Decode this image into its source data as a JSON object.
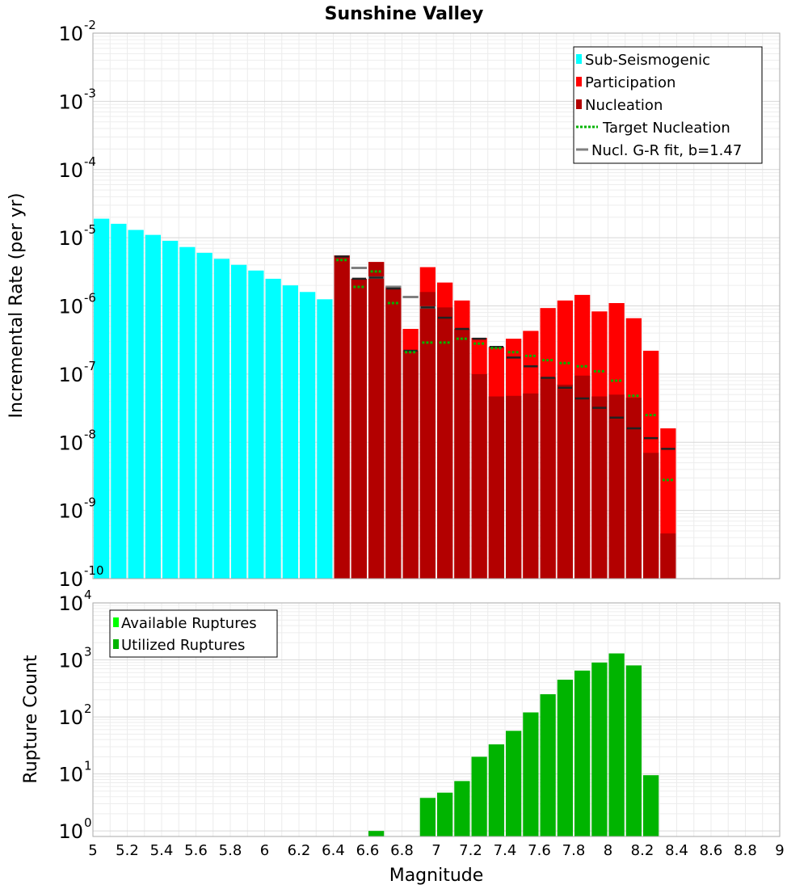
{
  "chart_data": [
    {
      "type": "bar",
      "title": "Sunshine Valley",
      "xlabel": "",
      "ylabel": "Incremental Rate (per yr)",
      "yscale": "log",
      "ylim": [
        1e-10,
        0.01
      ],
      "xlim": [
        5,
        9
      ],
      "ytick_exponents": [
        "-10",
        "-9",
        "-8",
        "-7",
        "-6",
        "-5",
        "-4",
        "-3",
        "-2"
      ],
      "ytick_base": "10",
      "legend_position": "top-right",
      "colors": {
        "sub_seismogenic": "#00ffff",
        "participation": "#ff0000",
        "nucleation": "#b30000",
        "target_nucleation": "#00b400",
        "gr_fit": "#808080",
        "nucleation_marker": "#222222"
      },
      "legend": [
        {
          "label": "Sub-Seismogenic",
          "kind": "bar",
          "color": "#00ffff"
        },
        {
          "label": "Participation",
          "kind": "bar",
          "color": "#ff0000"
        },
        {
          "label": "Nucleation",
          "kind": "bar",
          "color": "#b30000"
        },
        {
          "label": "Target Nucleation",
          "kind": "dotted",
          "color": "#00b400"
        },
        {
          "label": "Nucl. G-R fit, b=1.47",
          "kind": "line",
          "color": "#808080"
        }
      ],
      "series": [
        {
          "name": "Sub-Seismogenic",
          "x": [
            5.05,
            5.15,
            5.25,
            5.35,
            5.45,
            5.55,
            5.65,
            5.75,
            5.85,
            5.95,
            6.05,
            6.15,
            6.25,
            6.35
          ],
          "values": [
            1.9e-05,
            1.6e-05,
            1.3e-05,
            1.1e-05,
            9e-06,
            7.3e-06,
            6e-06,
            4.9e-06,
            4e-06,
            3.3e-06,
            2.5e-06,
            2e-06,
            1.6e-06,
            1.25e-06
          ]
        },
        {
          "name": "Participation",
          "x": [
            6.45,
            6.55,
            6.65,
            6.75,
            6.85,
            6.95,
            7.05,
            7.15,
            7.25,
            7.35,
            7.45,
            7.55,
            7.65,
            7.75,
            7.85,
            7.95,
            8.05,
            8.15,
            8.25,
            8.35
          ],
          "values": [
            5.5e-06,
            2.5e-06,
            4.4e-06,
            1.9e-06,
            4.6e-07,
            3.7e-06,
            2.2e-06,
            1.2e-06,
            3.4e-07,
            2.5e-07,
            3.3e-07,
            4.3e-07,
            9.3e-07,
            1.2e-06,
            1.45e-06,
            8.3e-07,
            1.1e-06,
            6.6e-07,
            2.2e-07,
            1.6e-08
          ]
        },
        {
          "name": "Nucleation",
          "x": [
            6.45,
            6.55,
            6.65,
            6.75,
            6.85,
            6.95,
            7.05,
            7.15,
            7.25,
            7.35,
            7.45,
            7.55,
            7.65,
            7.75,
            7.85,
            7.95,
            8.05,
            8.15,
            8.25,
            8.35
          ],
          "values": [
            5.5e-06,
            2.5e-06,
            4.4e-06,
            1.9e-06,
            2.2e-07,
            1.6e-06,
            9.5e-07,
            4.6e-07,
            1e-07,
            4.7e-08,
            4.8e-08,
            5.2e-08,
            9e-08,
            7e-08,
            9.5e-08,
            4.7e-08,
            5e-08,
            4.5e-08,
            7e-09,
            4.6e-10
          ]
        },
        {
          "name": "Nucleation Marker",
          "x": [
            6.45,
            6.55,
            6.65,
            6.75,
            6.85,
            6.95,
            7.05,
            7.15,
            7.25,
            7.35,
            7.45,
            7.55,
            7.65,
            7.75,
            7.85,
            7.95,
            8.05,
            8.15,
            8.25,
            8.35
          ],
          "values": [
            5.3e-06,
            2.5e-06,
            2.6e-06,
            1.8e-06,
            2.2e-07,
            9.5e-07,
            6.7e-07,
            4.6e-07,
            3.3e-07,
            2.5e-07,
            1.75e-07,
            1.3e-07,
            8.8e-08,
            6.3e-08,
            4.4e-08,
            3.2e-08,
            2.3e-08,
            1.6e-08,
            1.15e-08,
            8e-09
          ]
        },
        {
          "name": "Target Nucleation",
          "x": [
            6.45,
            6.55,
            6.65,
            6.75,
            6.85,
            6.95,
            7.05,
            7.15,
            7.25,
            7.35,
            7.45,
            7.55,
            7.65,
            7.75,
            7.85,
            7.95,
            8.05,
            8.15,
            8.25,
            8.35
          ],
          "values": [
            4.7e-06,
            1.9e-06,
            3.2e-06,
            1.1e-06,
            2.1e-07,
            2.9e-07,
            2.9e-07,
            3.3e-07,
            2.8e-07,
            2.4e-07,
            2.1e-07,
            1.85e-07,
            1.6e-07,
            1.45e-07,
            1.3e-07,
            1.1e-07,
            8e-08,
            4.8e-08,
            2.5e-08,
            2.8e-09
          ]
        },
        {
          "name": "Nucl. G-R fit, b=1.47",
          "x": [
            6.55,
            6.65,
            6.75,
            6.85,
            6.95
          ],
          "values": [
            3.6e-06,
            2.6e-06,
            1.9e-06,
            1.35e-06,
            9.5e-07
          ]
        }
      ]
    },
    {
      "type": "bar",
      "title": "",
      "xlabel": "Magnitude",
      "ylabel": "Rupture Count",
      "yscale": "log",
      "ylim": [
        0.8,
        10000
      ],
      "xlim": [
        5,
        9
      ],
      "xticks": [
        "5",
        "5.2",
        "5.4",
        "5.6",
        "5.8",
        "6",
        "6.2",
        "6.4",
        "6.6",
        "6.8",
        "7",
        "7.2",
        "7.4",
        "7.6",
        "7.8",
        "8",
        "8.2",
        "8.4",
        "8.6",
        "8.8",
        "9"
      ],
      "ytick_exponents": [
        "0",
        "1",
        "2",
        "3",
        "4"
      ],
      "ytick_base": "10",
      "legend_position": "top-left",
      "colors": {
        "available": "#00ff00",
        "utilized": "#00b400"
      },
      "legend": [
        {
          "label": "Available Ruptures",
          "kind": "bar",
          "color": "#00ff00"
        },
        {
          "label": "Utilized Ruptures",
          "kind": "bar",
          "color": "#00b400"
        }
      ],
      "series": [
        {
          "name": "Utilized Ruptures",
          "x": [
            6.65,
            6.95,
            7.05,
            7.15,
            7.25,
            7.35,
            7.45,
            7.55,
            7.65,
            7.75,
            7.85,
            7.95,
            8.05,
            8.15,
            8.25
          ],
          "values": [
            1,
            3.8,
            4.7,
            7.5,
            20,
            33,
            57,
            120,
            250,
            450,
            650,
            900,
            1300,
            800,
            9.5
          ]
        }
      ]
    }
  ]
}
